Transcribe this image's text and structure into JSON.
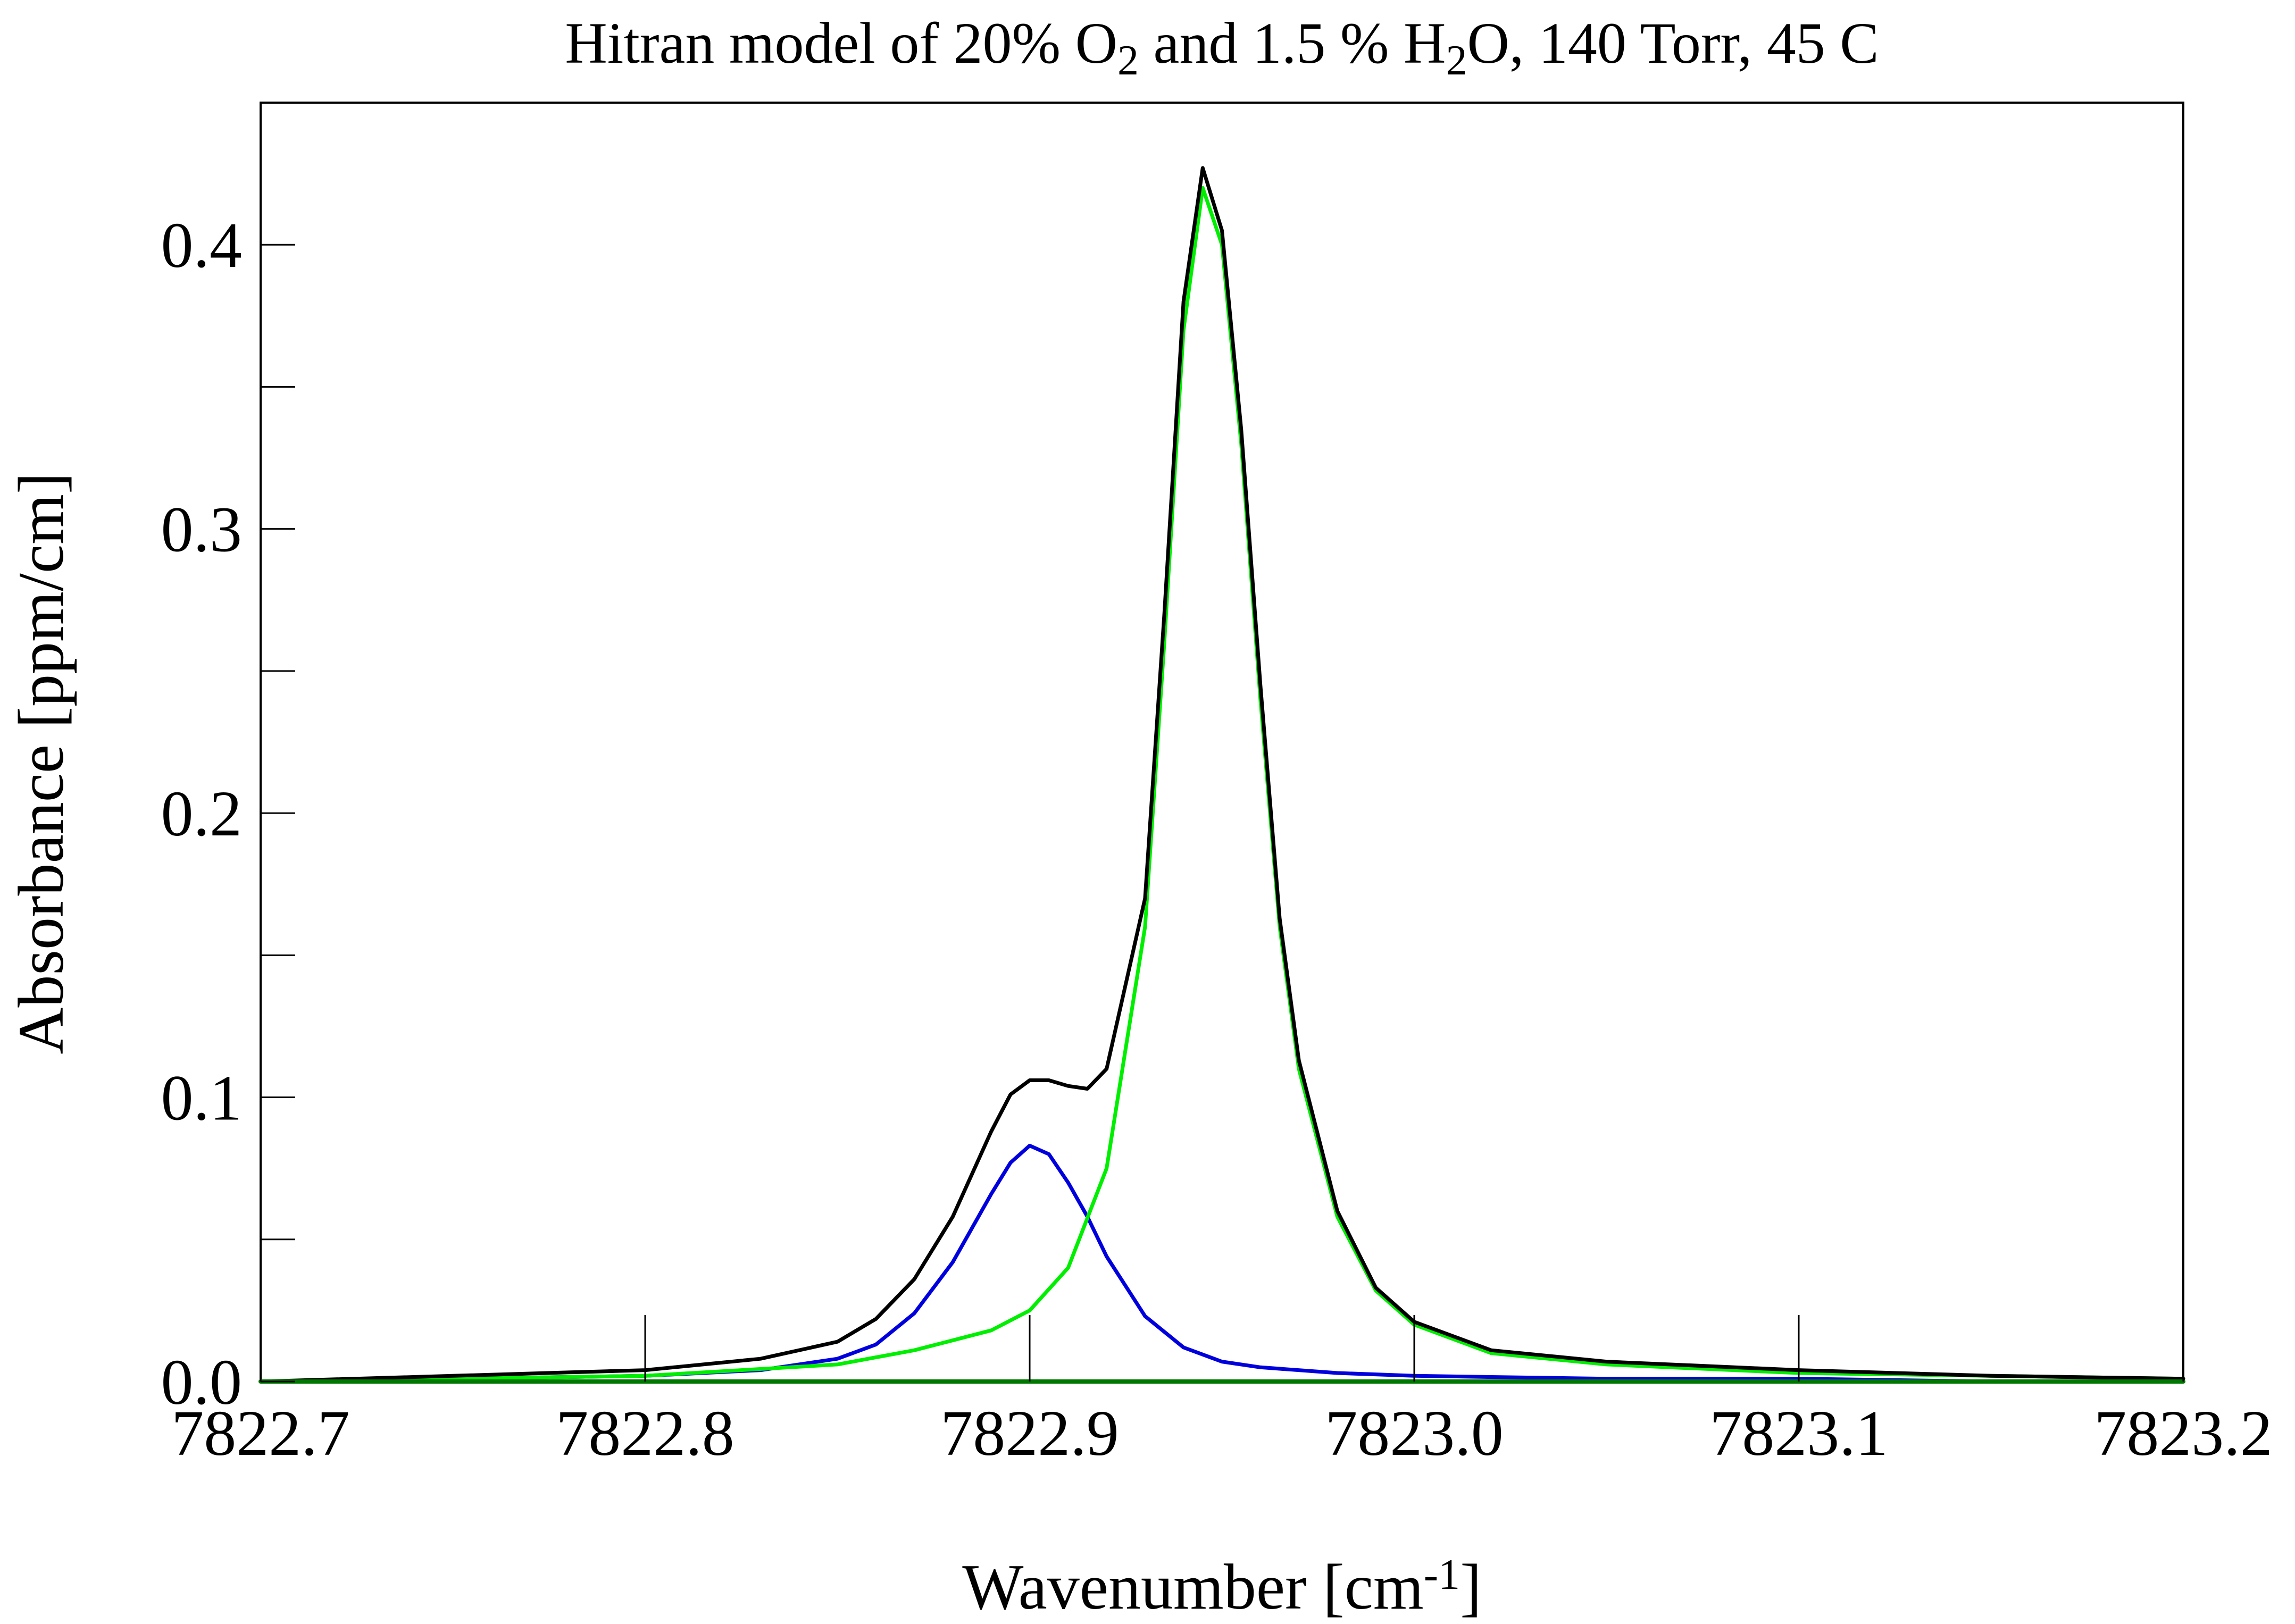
{
  "chart_data": {
    "type": "line",
    "title": {
      "parts": [
        {
          "text": "Hitran model of 20% O",
          "sub": false
        },
        {
          "text": "2",
          "sub": true
        },
        {
          "text": " and 1.5 % H",
          "sub": false
        },
        {
          "text": "2",
          "sub": true
        },
        {
          "text": "O, 140 Torr, 45 C",
          "sub": false
        }
      ]
    },
    "xlabel": {
      "base": "Wavenumber [cm",
      "sup": "-1",
      "tail": "]"
    },
    "ylabel": "Absorbance [ppm/cm]",
    "xlim": [
      7822.7,
      7823.2
    ],
    "ylim": [
      0.0,
      0.45
    ],
    "x_ticks": [
      {
        "value": 7822.7,
        "label": "7822.7"
      },
      {
        "value": 7822.8,
        "label": "7822.8"
      },
      {
        "value": 7822.9,
        "label": "7822.9"
      },
      {
        "value": 7823.0,
        "label": "7823.0"
      },
      {
        "value": 7823.1,
        "label": "7823.1"
      },
      {
        "value": 7823.2,
        "label": "7823.2"
      }
    ],
    "y_ticks_major": [
      {
        "value": 0.0,
        "label": "0.0"
      },
      {
        "value": 0.1,
        "label": "0.1"
      },
      {
        "value": 0.2,
        "label": "0.2"
      },
      {
        "value": 0.3,
        "label": "0.3"
      },
      {
        "value": 0.4,
        "label": "0.4"
      }
    ],
    "y_ticks_minor": [
      0.05,
      0.15,
      0.25,
      0.35
    ],
    "grid": false,
    "legend": "none",
    "series": [
      {
        "color": "#0000dd",
        "x": [
          7822.7,
          7822.75,
          7822.8,
          7822.83,
          7822.85,
          7822.86,
          7822.87,
          7822.88,
          7822.89,
          7822.895,
          7822.9,
          7822.905,
          7822.91,
          7822.915,
          7822.92,
          7822.93,
          7822.94,
          7822.95,
          7822.96,
          7822.98,
          7823.0,
          7823.05,
          7823.1,
          7823.15,
          7823.2
        ],
        "y": [
          0.0,
          0.001,
          0.002,
          0.004,
          0.008,
          0.013,
          0.024,
          0.042,
          0.066,
          0.077,
          0.083,
          0.08,
          0.07,
          0.058,
          0.044,
          0.023,
          0.012,
          0.007,
          0.005,
          0.003,
          0.002,
          0.001,
          0.001,
          0.0,
          0.0
        ]
      },
      {
        "color": "#00ee00",
        "x": [
          7822.7,
          7822.8,
          7822.85,
          7822.87,
          7822.89,
          7822.9,
          7822.91,
          7822.92,
          7822.93,
          7822.935,
          7822.94,
          7822.945,
          7822.95,
          7822.955,
          7822.96,
          7822.965,
          7822.97,
          7822.98,
          7822.99,
          7823.0,
          7823.02,
          7823.05,
          7823.1,
          7823.15,
          7823.2
        ],
        "y": [
          0.0,
          0.002,
          0.006,
          0.011,
          0.018,
          0.025,
          0.04,
          0.075,
          0.16,
          0.26,
          0.37,
          0.42,
          0.4,
          0.33,
          0.24,
          0.16,
          0.11,
          0.058,
          0.032,
          0.02,
          0.01,
          0.006,
          0.003,
          0.002,
          0.001
        ]
      },
      {
        "color": "#000000",
        "x": [
          7822.7,
          7822.75,
          7822.8,
          7822.83,
          7822.85,
          7822.86,
          7822.87,
          7822.88,
          7822.89,
          7822.895,
          7822.9,
          7822.905,
          7822.91,
          7822.915,
          7822.92,
          7822.93,
          7822.935,
          7822.94,
          7822.945,
          7822.95,
          7822.955,
          7822.96,
          7822.965,
          7822.97,
          7822.98,
          7822.99,
          7823.0,
          7823.02,
          7823.05,
          7823.1,
          7823.15,
          7823.2
        ],
        "y": [
          0.0,
          0.002,
          0.004,
          0.008,
          0.014,
          0.022,
          0.036,
          0.058,
          0.088,
          0.101,
          0.106,
          0.106,
          0.104,
          0.103,
          0.11,
          0.17,
          0.27,
          0.38,
          0.427,
          0.405,
          0.335,
          0.245,
          0.163,
          0.113,
          0.06,
          0.033,
          0.021,
          0.011,
          0.007,
          0.004,
          0.002,
          0.001
        ]
      },
      {
        "color": "#007700",
        "x": [
          7822.7,
          7823.2
        ],
        "y": [
          0.0,
          0.0
        ]
      }
    ]
  }
}
